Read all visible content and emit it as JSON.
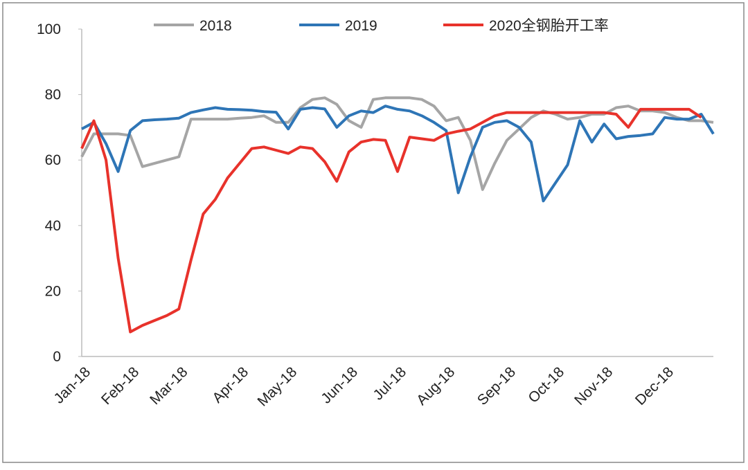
{
  "chart_data": {
    "type": "line",
    "categories": [
      "Jan-18",
      null,
      null,
      null,
      "Feb-18",
      null,
      null,
      null,
      "Mar-18",
      null,
      null,
      null,
      null,
      "Apr-18",
      null,
      null,
      null,
      "May-18",
      null,
      null,
      null,
      null,
      "Jun-18",
      null,
      null,
      null,
      "Jul-18",
      null,
      null,
      null,
      "Aug-18",
      null,
      null,
      null,
      null,
      "Sep-18",
      null,
      null,
      null,
      "Oct-18",
      null,
      null,
      null,
      "Nov-18",
      null,
      null,
      null,
      null,
      "Dec-18",
      null,
      null,
      null,
      null
    ],
    "series": [
      {
        "name": "2018",
        "color": "#a5a5a5",
        "values": [
          61,
          68,
          68,
          68,
          67.5,
          58,
          59,
          60,
          61,
          72.5,
          72.5,
          72.5,
          72.5,
          72.8,
          73,
          73.5,
          71.5,
          71.5,
          76,
          78.5,
          79,
          77,
          72,
          70,
          78.5,
          79,
          79,
          79,
          78.5,
          76.5,
          72,
          73,
          66,
          51,
          59,
          66,
          69.5,
          73,
          75,
          74,
          72.5,
          73,
          74,
          74,
          76,
          76.5,
          75,
          75,
          74.5,
          73,
          72,
          72,
          71.5
        ]
      },
      {
        "name": "2019",
        "color": "#2e75b6",
        "values": [
          69.5,
          71.5,
          65,
          56.5,
          69,
          72,
          72.3,
          72.5,
          72.8,
          74.5,
          75.3,
          76,
          75.5,
          75.4,
          75.2,
          74.8,
          74.6,
          69.5,
          75.5,
          76,
          75.6,
          70,
          73.5,
          75,
          74.5,
          76.5,
          75.5,
          75,
          73.5,
          71.5,
          69,
          50,
          61,
          70,
          71.5,
          72,
          70,
          65.5,
          47.5,
          53,
          58.5,
          72,
          65.5,
          71,
          66.5,
          67.2,
          67.5,
          68,
          73,
          72.5,
          72.5,
          74,
          68
        ]
      },
      {
        "name": "2020全钢胎开工率",
        "color": "#e8322b",
        "values": [
          63.5,
          72,
          60,
          30,
          7.5,
          9.5,
          11,
          12.5,
          14.5,
          29.5,
          43.5,
          48,
          54.5,
          59,
          63.5,
          64,
          63,
          62,
          64,
          63.5,
          59.5,
          53.5,
          62.5,
          65.5,
          66.3,
          66,
          56.5,
          67,
          66.5,
          66,
          68,
          68.8,
          69.5,
          71.5,
          73.5,
          74.5,
          74.5,
          74.5,
          74.5,
          74.5,
          74.5,
          74.5,
          74.5,
          74.5,
          74,
          70,
          75.5,
          75.5,
          75.5,
          75.5,
          75.5,
          73,
          null
        ]
      }
    ],
    "ylim": [
      0,
      100
    ],
    "yticks": [
      0,
      20,
      40,
      60,
      80,
      100
    ],
    "grid": false,
    "legend": "top"
  }
}
